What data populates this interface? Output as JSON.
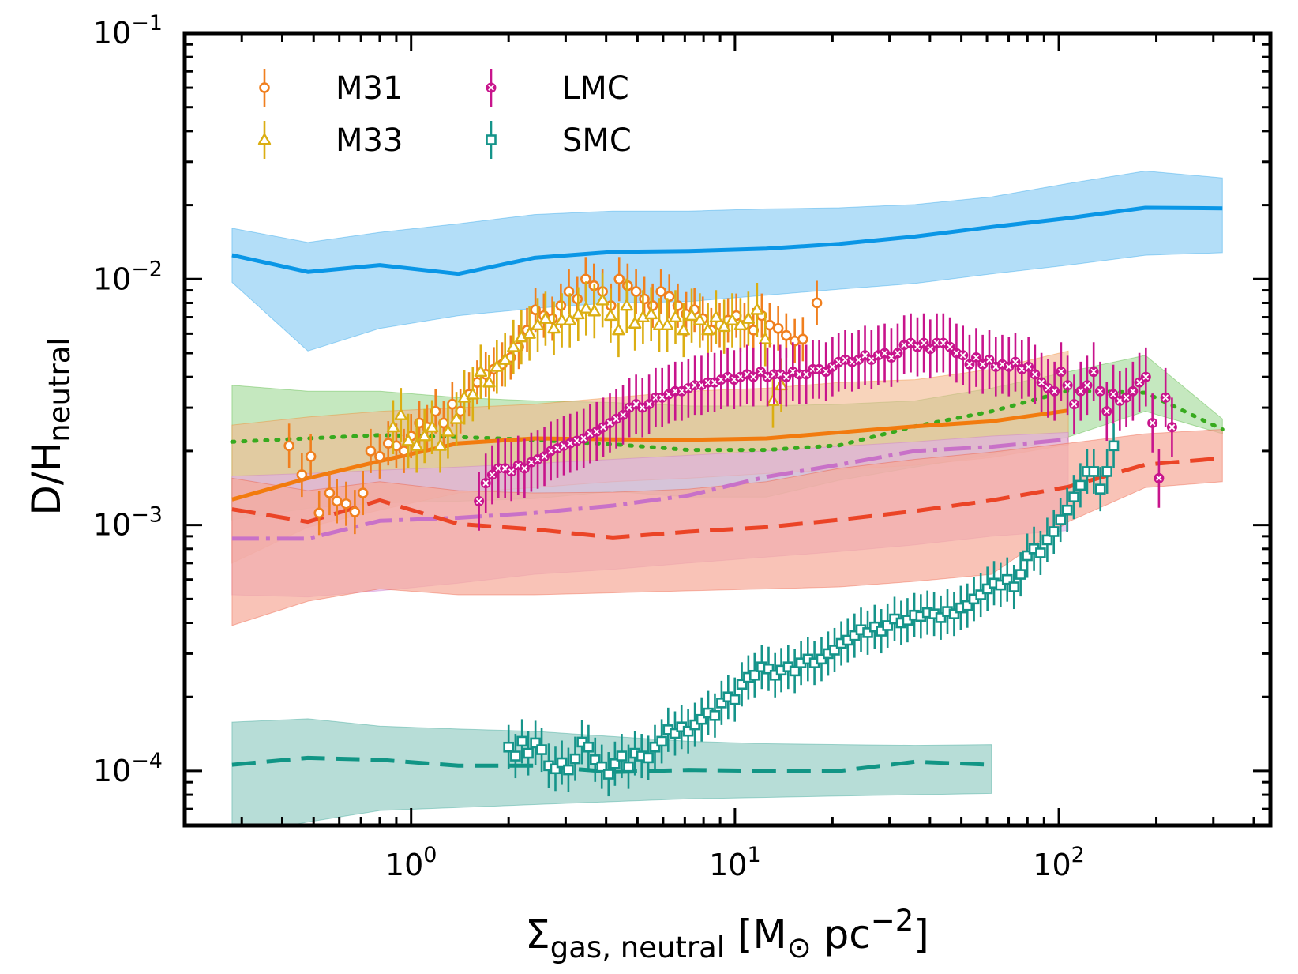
{
  "chart_data": {
    "type": "scatter",
    "xscale": "log",
    "yscale": "log",
    "xlim": [
      0.2,
      450
    ],
    "ylim": [
      6e-05,
      0.1
    ],
    "xlabel": "Σgas, neutral [M⊙ pc−2]",
    "ylabel": "D/Hneutral",
    "xlabel_parts": {
      "sym": "Σ",
      "sub": "gas, neutral",
      "pre": " [M",
      "sun": "⊙",
      "mid": " pc",
      "sup": "−2",
      "post": "]"
    },
    "ylabel_parts": {
      "main": "D/H",
      "sub": "neutral"
    },
    "xticks": [
      {
        "value": 1,
        "base": "10",
        "exp": "0"
      },
      {
        "value": 10,
        "base": "10",
        "exp": "1"
      },
      {
        "value": 100,
        "base": "10",
        "exp": "2"
      }
    ],
    "yticks": [
      {
        "value": 0.0001,
        "base": "10",
        "exp": "−4"
      },
      {
        "value": 0.001,
        "base": "10",
        "exp": "−3"
      },
      {
        "value": 0.01,
        "base": "10",
        "exp": "−2"
      },
      {
        "value": 0.1,
        "base": "10",
        "exp": "−1"
      }
    ],
    "legend": [
      {
        "label": "M31",
        "color": "#f07f1e",
        "marker": "circle"
      },
      {
        "label": "M33",
        "color": "#dbae12",
        "marker": "triangle"
      },
      {
        "label": "LMC",
        "color": "#c8148c",
        "marker": "xcircle"
      },
      {
        "label": "SMC",
        "color": "#15948a",
        "marker": "square"
      }
    ],
    "bands": [
      {
        "name": "blue-band",
        "color": "#0a96e6",
        "fill": "#99d3f6",
        "opacity": 0.75,
        "dash": "",
        "x": [
          0.28,
          0.48,
          0.8,
          1.4,
          2.4,
          4.2,
          7.2,
          12.5,
          21,
          36,
          62,
          107,
          185,
          320
        ],
        "y": [
          0.0125,
          0.0107,
          0.0114,
          0.0105,
          0.0122,
          0.0129,
          0.013,
          0.0133,
          0.0139,
          0.0149,
          0.0163,
          0.0177,
          0.0195,
          0.0194
        ],
        "low": [
          0.0097,
          0.0051,
          0.0063,
          0.0071,
          0.0076,
          0.008,
          0.0081,
          0.0086,
          0.0091,
          0.0096,
          0.0105,
          0.0114,
          0.0125,
          0.0128
        ],
        "high": [
          0.0161,
          0.0141,
          0.0155,
          0.0168,
          0.0183,
          0.0189,
          0.0189,
          0.0193,
          0.0195,
          0.0201,
          0.0216,
          0.0245,
          0.0275,
          0.0258
        ]
      },
      {
        "name": "green-band",
        "color": "#37aa1e",
        "fill": "#a6dc9d",
        "opacity": 0.65,
        "dash": "3 11",
        "x": [
          0.28,
          0.48,
          0.8,
          1.4,
          2.4,
          4.2,
          7.2,
          12.5,
          21,
          36,
          62,
          107,
          185,
          320
        ],
        "y": [
          0.00218,
          0.00225,
          0.00232,
          0.00228,
          0.00222,
          0.00213,
          0.00202,
          0.00202,
          0.00211,
          0.00252,
          0.0029,
          0.00352,
          0.00345,
          0.00245
        ],
        "low": [
          0.00105,
          0.00117,
          0.00123,
          0.00125,
          0.00128,
          0.00137,
          0.0013,
          0.0013,
          0.00152,
          0.00172,
          0.00193,
          0.00228,
          0.0029,
          0.00235
        ],
        "high": [
          0.0037,
          0.0035,
          0.0035,
          0.0033,
          0.0032,
          0.00315,
          0.00305,
          0.00305,
          0.0031,
          0.0032,
          0.0036,
          0.0042,
          0.0049,
          0.0027
        ]
      },
      {
        "name": "orange-band",
        "color": "#f27b0e",
        "fill": "#f4b88e",
        "opacity": 0.6,
        "dash": "",
        "x": [
          0.28,
          0.48,
          0.8,
          1.4,
          2.4,
          4.2,
          7.2,
          12.5,
          21,
          36,
          62,
          107
        ],
        "y": [
          0.00127,
          0.00155,
          0.00182,
          0.00215,
          0.00225,
          0.00223,
          0.00222,
          0.00225,
          0.00238,
          0.00252,
          0.00264,
          0.00292
        ],
        "low": [
          0.0007,
          0.00098,
          0.00115,
          0.00135,
          0.00142,
          0.0015,
          0.00155,
          0.00162,
          0.00168,
          0.00175,
          0.00188,
          0.00212
        ],
        "high": [
          0.00255,
          0.00275,
          0.0029,
          0.003,
          0.0031,
          0.0033,
          0.0035,
          0.0036,
          0.0038,
          0.0039,
          0.0043,
          0.0051
        ]
      },
      {
        "name": "violet-band",
        "color": "#c871c8",
        "fill": "#dfb1e6",
        "opacity": 0.65,
        "dash": "34 9 5 9",
        "x": [
          0.28,
          0.48,
          0.8,
          1.4,
          2.4,
          4.2,
          7.2,
          12.5,
          21,
          36,
          62,
          107
        ],
        "y": [
          0.00088,
          0.00088,
          0.00104,
          0.00107,
          0.00112,
          0.0012,
          0.00132,
          0.00157,
          0.00176,
          0.002,
          0.00208,
          0.00223
        ],
        "low": [
          0.00052,
          0.00051,
          0.00054,
          0.00058,
          0.00063,
          0.00066,
          0.0007,
          0.00074,
          0.00078,
          0.00083,
          0.0009,
          0.00095
        ],
        "high": [
          0.00158,
          0.00162,
          0.00167,
          0.00172,
          0.00178,
          0.00185,
          0.00192,
          0.002,
          0.00209,
          0.00218,
          0.0023,
          0.00238
        ]
      },
      {
        "name": "red-band",
        "color": "#eb4426",
        "fill": "#f6a999",
        "opacity": 0.7,
        "dash": "30 14",
        "x": [
          0.28,
          0.48,
          0.8,
          1.4,
          2.4,
          4.2,
          7.2,
          12.5,
          21,
          36,
          62,
          107,
          185,
          320
        ],
        "y": [
          0.00116,
          0.00103,
          0.00126,
          0.00101,
          0.00096,
          0.00089,
          0.00094,
          0.00098,
          0.00105,
          0.00114,
          0.00126,
          0.00143,
          0.00176,
          0.00187
        ],
        "low": [
          0.00039,
          0.00049,
          0.00055,
          0.00052,
          0.00052,
          0.00053,
          0.00054,
          0.00055,
          0.00056,
          0.00059,
          0.00063,
          0.00103,
          0.00142,
          0.0015
        ],
        "high": [
          0.00155,
          0.00138,
          0.0015,
          0.00138,
          0.00135,
          0.00136,
          0.0014,
          0.0015,
          0.0017,
          0.00185,
          0.00198,
          0.00215,
          0.00235,
          0.00245
        ]
      },
      {
        "name": "teal-band",
        "color": "#119585",
        "fill": "#9fd2c9",
        "opacity": 0.75,
        "dash": "30 14",
        "x": [
          0.28,
          0.48,
          0.8,
          1.4,
          2.4,
          4.2,
          7.2,
          12.5,
          21,
          36,
          62
        ],
        "y": [
          0.000106,
          0.000113,
          0.000111,
          0.000105,
          0.000105,
          9.9e-05,
          0.000101,
          0.0001,
          0.0001,
          0.000109,
          0.000106
        ],
        "low": [
          5.4e-05,
          6.2e-05,
          6.9e-05,
          7.1e-05,
          7.3e-05,
          7.5e-05,
          7.7e-05,
          7.8e-05,
          7.9e-05,
          8e-05,
          8.1e-05
        ],
        "high": [
          0.000158,
          0.000163,
          0.000152,
          0.000148,
          0.000145,
          0.000138,
          0.000132,
          0.000129,
          0.000128,
          0.000127,
          0.000128
        ]
      }
    ],
    "series": [
      {
        "name": "M31",
        "color": "#f07f1e",
        "marker": "circle",
        "x": [
          0.42,
          0.46,
          0.49,
          0.52,
          0.56,
          0.59,
          0.63,
          0.67,
          0.71,
          0.75,
          0.8,
          0.85,
          0.9,
          0.95,
          1.0,
          1.06,
          1.12,
          1.19,
          1.26,
          1.34,
          1.42,
          1.51,
          1.6,
          1.7,
          1.8,
          1.91,
          2.03,
          2.15,
          2.28,
          2.42,
          2.57,
          2.73,
          2.9,
          3.07,
          3.26,
          3.46,
          3.67,
          3.9,
          4.14,
          4.39,
          4.66,
          4.95,
          5.25,
          5.57,
          5.91,
          6.27,
          6.66,
          7.07,
          7.5,
          7.96,
          8.45,
          8.97,
          9.52,
          10.1,
          10.7,
          11.4,
          12.1,
          12.8,
          13.6,
          14.4,
          15.3,
          16.2,
          17.9
        ],
        "y": [
          0.0021,
          0.0016,
          0.0019,
          0.00112,
          0.00135,
          0.00125,
          0.00122,
          0.00113,
          0.00135,
          0.002,
          0.0019,
          0.00215,
          0.0021,
          0.002,
          0.0023,
          0.0026,
          0.0025,
          0.0029,
          0.0026,
          0.0031,
          0.0029,
          0.0034,
          0.0038,
          0.0041,
          0.0043,
          0.0045,
          0.0048,
          0.0053,
          0.0062,
          0.0075,
          0.0071,
          0.0069,
          0.0078,
          0.0089,
          0.0083,
          0.01,
          0.0094,
          0.0089,
          0.0078,
          0.01,
          0.0094,
          0.0089,
          0.0083,
          0.0078,
          0.0089,
          0.0085,
          0.0078,
          0.0072,
          0.0075,
          0.0069,
          0.0062,
          0.0065,
          0.0068,
          0.0071,
          0.0065,
          0.0062,
          0.0071,
          0.0065,
          0.0063,
          0.0059,
          0.0056,
          0.0057,
          0.008
        ],
        "err": 0.09
      },
      {
        "name": "M33",
        "color": "#dbae12",
        "marker": "triangle",
        "x": [
          0.88,
          0.93,
          0.98,
          1.04,
          1.1,
          1.16,
          1.23,
          1.3,
          1.38,
          1.46,
          1.55,
          1.64,
          1.74,
          1.84,
          1.95,
          2.07,
          2.19,
          2.32,
          2.46,
          2.6,
          2.76,
          2.92,
          3.09,
          3.28,
          3.47,
          3.68,
          3.9,
          4.13,
          4.37,
          4.63,
          4.91,
          5.2,
          5.51,
          5.84,
          6.18,
          6.55,
          6.94,
          7.35,
          7.79,
          8.25,
          8.74,
          9.26,
          9.81,
          10.4,
          11.0,
          11.7,
          12.4,
          13.1,
          13.9
        ],
        "y": [
          0.0025,
          0.0028,
          0.0022,
          0.0021,
          0.0023,
          0.0025,
          0.0021,
          0.0024,
          0.0027,
          0.0033,
          0.0034,
          0.0042,
          0.0038,
          0.0044,
          0.0047,
          0.0053,
          0.0058,
          0.006,
          0.0065,
          0.0069,
          0.0063,
          0.0068,
          0.0068,
          0.0072,
          0.0076,
          0.0074,
          0.0082,
          0.0071,
          0.0062,
          0.0078,
          0.0066,
          0.007,
          0.0072,
          0.0065,
          0.0065,
          0.007,
          0.0062,
          0.0071,
          0.0068,
          0.0062,
          0.007,
          0.0064,
          0.0068,
          0.0065,
          0.0069,
          0.0075,
          0.0057,
          0.0032,
          0.0037
        ],
        "err": 0.11
      },
      {
        "name": "LMC",
        "color": "#c8148c",
        "marker": "xcircle",
        "x": [
          1.62,
          1.7,
          1.78,
          1.86,
          1.95,
          2.04,
          2.14,
          2.24,
          2.35,
          2.46,
          2.58,
          2.7,
          2.83,
          2.96,
          3.1,
          3.25,
          3.41,
          3.57,
          3.74,
          3.92,
          4.11,
          4.3,
          4.51,
          4.72,
          4.95,
          5.18,
          5.43,
          5.69,
          5.96,
          6.24,
          6.54,
          6.85,
          7.18,
          7.52,
          7.88,
          8.25,
          8.65,
          9.06,
          9.49,
          9.94,
          10.4,
          10.9,
          11.4,
          12.0,
          12.6,
          13.2,
          13.8,
          14.4,
          15.1,
          15.8,
          16.6,
          17.4,
          18.2,
          19.1,
          20.0,
          20.9,
          21.9,
          23.0,
          24.1,
          25.2,
          26.4,
          27.7,
          29.0,
          30.4,
          31.8,
          33.3,
          34.9,
          36.6,
          38.3,
          40.1,
          42.0,
          44.0,
          46.1,
          48.3,
          50.6,
          53.0,
          55.6,
          58.2,
          61.0,
          63.9,
          66.9,
          70.1,
          73.4,
          76.9,
          80.6,
          84.4,
          88.4,
          92.6,
          97.0,
          101.6,
          106.4,
          111.5,
          116.8,
          122.3,
          128.1,
          134.2,
          140.6,
          147.3,
          154.3,
          161.6,
          169.3,
          177.3,
          185.7,
          194.6,
          203.8,
          213.5,
          223.6
        ],
        "y": [
          0.00125,
          0.00148,
          0.0016,
          0.0017,
          0.0017,
          0.00165,
          0.00175,
          0.0017,
          0.0018,
          0.00185,
          0.0019,
          0.002,
          0.00205,
          0.0021,
          0.00215,
          0.0022,
          0.00225,
          0.00235,
          0.0024,
          0.0025,
          0.0026,
          0.0027,
          0.0028,
          0.003,
          0.0031,
          0.003,
          0.0031,
          0.0033,
          0.0033,
          0.0034,
          0.0035,
          0.0035,
          0.0036,
          0.0037,
          0.0037,
          0.0038,
          0.0038,
          0.0039,
          0.004,
          0.0039,
          0.004,
          0.0041,
          0.004,
          0.0042,
          0.004,
          0.0041,
          0.0041,
          0.004,
          0.0042,
          0.0041,
          0.0041,
          0.0043,
          0.0043,
          0.0042,
          0.0044,
          0.0046,
          0.0047,
          0.0046,
          0.0047,
          0.0049,
          0.0047,
          0.0049,
          0.005,
          0.0048,
          0.005,
          0.0054,
          0.0055,
          0.0053,
          0.0055,
          0.0052,
          0.0055,
          0.0055,
          0.0053,
          0.005,
          0.0049,
          0.0045,
          0.0048,
          0.0045,
          0.0047,
          0.0044,
          0.0045,
          0.0044,
          0.0046,
          0.0043,
          0.0044,
          0.0041,
          0.0038,
          0.0036,
          0.0035,
          0.0042,
          0.0037,
          0.0031,
          0.0035,
          0.0037,
          0.0042,
          0.0035,
          0.0029,
          0.0034,
          0.0032,
          0.0033,
          0.0035,
          0.0038,
          0.004,
          0.0026,
          0.00155,
          0.0033,
          0.0025
        ],
        "err": 0.12
      },
      {
        "name": "SMC",
        "color": "#15948a",
        "marker": "square",
        "x": [
          2.0,
          2.1,
          2.2,
          2.3,
          2.42,
          2.53,
          2.66,
          2.79,
          2.92,
          3.06,
          3.21,
          3.37,
          3.53,
          3.7,
          3.88,
          4.07,
          4.26,
          4.47,
          4.69,
          4.91,
          5.15,
          5.4,
          5.66,
          5.94,
          6.22,
          6.53,
          6.84,
          7.17,
          7.52,
          7.89,
          8.27,
          8.67,
          9.09,
          9.53,
          9.99,
          10.5,
          11.0,
          11.5,
          12.1,
          12.7,
          13.3,
          13.9,
          14.6,
          15.3,
          16.0,
          16.8,
          17.6,
          18.5,
          19.4,
          20.3,
          21.3,
          22.3,
          23.4,
          24.5,
          25.7,
          27.0,
          28.3,
          29.6,
          31.1,
          32.6,
          34.1,
          35.8,
          37.5,
          39.3,
          41.2,
          43.2,
          45.3,
          47.5,
          49.8,
          52.2,
          54.7,
          57.4,
          60.2,
          63.1,
          66.1,
          69.3,
          72.7,
          76.2,
          79.9,
          83.8,
          87.8,
          92.1,
          96.5,
          101.2,
          106.1,
          111.2,
          116.6,
          122.3,
          128.2,
          134.4,
          140.9,
          147.7
        ],
        "y": [
          0.000125,
          0.000115,
          0.000132,
          0.000118,
          0.00013,
          0.000122,
          0.000105,
          0.000102,
          0.000108,
          0.000101,
          0.000112,
          0.000131,
          0.000125,
          0.000111,
          0.000104,
          9.7e-05,
          0.000107,
          0.000115,
          0.000104,
          0.000118,
          0.000115,
          0.000113,
          0.000125,
          0.000132,
          0.000147,
          0.000142,
          0.000151,
          0.000145,
          0.000154,
          0.000162,
          0.000172,
          0.000168,
          0.000189,
          0.0002,
          0.000195,
          0.000225,
          0.00024,
          0.000245,
          0.000265,
          0.00026,
          0.000245,
          0.000257,
          0.000265,
          0.000255,
          0.000275,
          0.000285,
          0.000275,
          0.000285,
          0.0003,
          0.00031,
          0.00033,
          0.00034,
          0.000355,
          0.000375,
          0.000365,
          0.000385,
          0.00037,
          0.00039,
          0.000415,
          0.0004,
          0.00041,
          0.00043,
          0.000425,
          0.00044,
          0.000435,
          0.00042,
          0.000445,
          0.000435,
          0.00046,
          0.00047,
          0.0005,
          0.00052,
          0.00055,
          0.00058,
          0.00057,
          0.0006,
          0.00056,
          0.00063,
          0.00075,
          0.0008,
          0.00077,
          0.00087,
          0.00094,
          0.00105,
          0.00115,
          0.0013,
          0.00145,
          0.00165,
          0.00165,
          0.0014,
          0.00165,
          0.0021
        ],
        "err": 0.09
      }
    ]
  }
}
